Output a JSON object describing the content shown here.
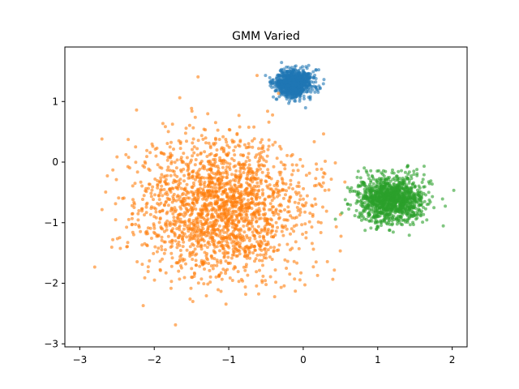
{
  "chart_data": {
    "type": "scatter",
    "title": "GMM Varied",
    "xlabel": "",
    "ylabel": "",
    "xlim": [
      -3.2,
      2.2
    ],
    "ylim": [
      -3.05,
      1.9
    ],
    "xticks": [
      -3,
      -2,
      -1,
      0,
      1,
      2
    ],
    "xtick_labels": [
      "−3",
      "−2",
      "−1",
      "0",
      "1",
      "2"
    ],
    "yticks": [
      1,
      0,
      -1,
      -2,
      -3
    ],
    "ytick_labels": [
      "1",
      "0",
      "−1",
      "−2",
      "−3"
    ],
    "grid": false,
    "legend": "none",
    "series": [
      {
        "color": "#1f77b4",
        "opacity": 0.6,
        "center": [
          -0.13,
          1.3
        ],
        "std": [
          0.12,
          0.11
        ],
        "count": 1000
      },
      {
        "color": "#ff7f0e",
        "opacity": 0.6,
        "center": [
          -1.1,
          -0.75
        ],
        "std": [
          0.55,
          0.57
        ],
        "count": 2000
      },
      {
        "color": "#2ca02c",
        "opacity": 0.6,
        "center": [
          1.18,
          -0.62
        ],
        "std": [
          0.22,
          0.19
        ],
        "count": 1200
      }
    ]
  }
}
